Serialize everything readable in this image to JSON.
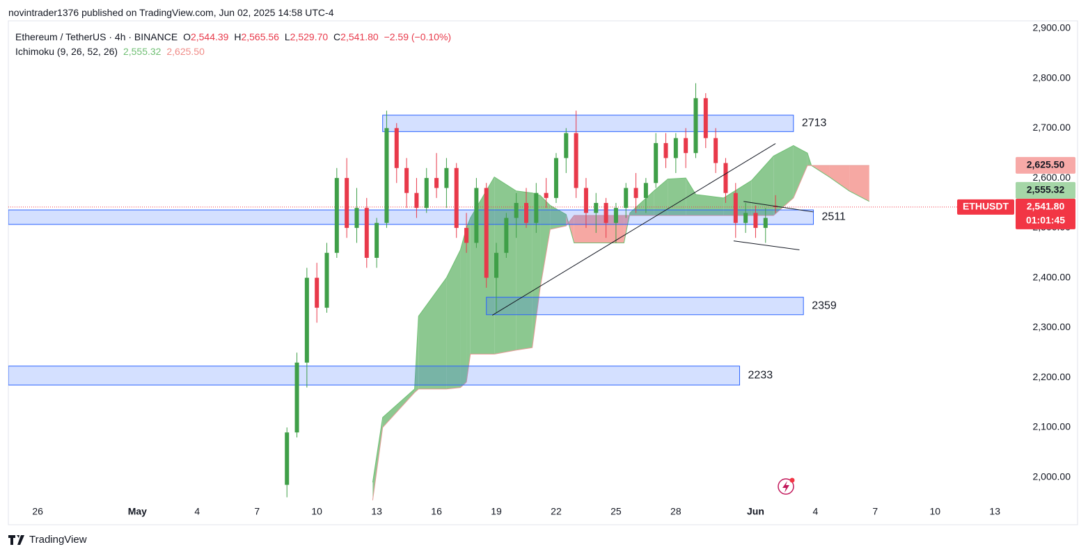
{
  "header": {
    "publisher": "novintrader1376 published on TradingView.com, Jun 02, 2025 14:58 UTC-4",
    "symbol": "Ethereum / TetherUS · 4h · BINANCE",
    "ohlc": [
      {
        "key": "O",
        "value": "2,544.39"
      },
      {
        "key": "H",
        "value": "2,565.56"
      },
      {
        "key": "L",
        "value": "2,529.70"
      },
      {
        "key": "C",
        "value": "2,541.80"
      }
    ],
    "change": "−2.59 (−0.10%)",
    "indicator": "Ichimoku (9, 26, 52, 26)",
    "indicator_values": [
      "2,555.32",
      "2,625.50"
    ]
  },
  "chart_data": {
    "type": "candlestick",
    "x": [
      12.5,
      13,
      13.5,
      14,
      14.5,
      15,
      15.5,
      16,
      16.5,
      17,
      17.5,
      18,
      18.5,
      19,
      19.5,
      20,
      20.5,
      21,
      21.5,
      22,
      22.5,
      23,
      23.5,
      24,
      24.5,
      25,
      25.5,
      26,
      26.5,
      27,
      27.5,
      28,
      28.5,
      29,
      29.5,
      30,
      30.5,
      31,
      31.5,
      32,
      32.5,
      33,
      33.5,
      34,
      34.5,
      35,
      35.5,
      36,
      36.5,
      37
    ],
    "open": [
      1985,
      2090,
      2230,
      2400,
      2340,
      2450,
      2600,
      2500,
      2540,
      2440,
      2510,
      2700,
      2620,
      2570,
      2540,
      2600,
      2580,
      2620,
      2500,
      2470,
      2580,
      2400,
      2450,
      2520,
      2550,
      2510,
      2570,
      2560,
      2640,
      2690,
      2580,
      2530,
      2550,
      2510,
      2540,
      2580,
      2560,
      2590,
      2670,
      2640,
      2680,
      2650,
      2760,
      2680,
      2630,
      2570,
      2510,
      2530,
      2500,
      2544.39
    ],
    "high": [
      2100,
      2250,
      2420,
      2430,
      2470,
      2620,
      2640,
      2580,
      2560,
      2520,
      2735,
      2710,
      2640,
      2600,
      2620,
      2650,
      2640,
      2630,
      2530,
      2600,
      2590,
      2470,
      2530,
      2570,
      2580,
      2590,
      2600,
      2650,
      2700,
      2735,
      2600,
      2570,
      2560,
      2550,
      2590,
      2610,
      2600,
      2690,
      2690,
      2690,
      2700,
      2790,
      2770,
      2700,
      2640,
      2590,
      2550,
      2545,
      2540,
      2565.56
    ],
    "low": [
      1960,
      2080,
      2180,
      2310,
      2330,
      2440,
      2480,
      2470,
      2420,
      2420,
      2500,
      2590,
      2540,
      2520,
      2530,
      2560,
      2540,
      2480,
      2450,
      2460,
      2380,
      2330,
      2440,
      2480,
      2500,
      2490,
      2540,
      2550,
      2610,
      2560,
      2500,
      2490,
      2480,
      2470,
      2520,
      2530,
      2530,
      2580,
      2620,
      2610,
      2620,
      2640,
      2660,
      2610,
      2550,
      2480,
      2490,
      2480,
      2470,
      2529.7
    ],
    "close": [
      2090,
      2230,
      2400,
      2340,
      2450,
      2600,
      2500,
      2540,
      2440,
      2510,
      2700,
      2620,
      2570,
      2540,
      2600,
      2580,
      2620,
      2500,
      2470,
      2580,
      2400,
      2450,
      2520,
      2550,
      2510,
      2570,
      2560,
      2640,
      2690,
      2580,
      2530,
      2550,
      2510,
      2540,
      2580,
      2560,
      2590,
      2670,
      2640,
      2680,
      2650,
      2760,
      2680,
      2630,
      2570,
      2510,
      2530,
      2500,
      2520,
      2541.8
    ],
    "up_color": "#3f9f48",
    "down_color": "#e8394a",
    "xlim": [
      -1.47,
      48.9
    ],
    "xticks": [
      {
        "value": 0,
        "label": "26"
      },
      {
        "value": 5,
        "label": "May"
      },
      {
        "value": 8,
        "label": "4"
      },
      {
        "value": 11,
        "label": "7"
      },
      {
        "value": 14,
        "label": "10"
      },
      {
        "value": 17,
        "label": "13"
      },
      {
        "value": 20,
        "label": "16"
      },
      {
        "value": 23,
        "label": "19"
      },
      {
        "value": 26,
        "label": "22"
      },
      {
        "value": 29,
        "label": "25"
      },
      {
        "value": 32,
        "label": "28"
      },
      {
        "value": 36,
        "label": "Jun"
      },
      {
        "value": 39,
        "label": "4"
      },
      {
        "value": 42,
        "label": "7"
      },
      {
        "value": 45,
        "label": "10"
      },
      {
        "value": 48,
        "label": "13"
      }
    ],
    "ylim": [
      1951,
      2915
    ],
    "yticks": [
      {
        "value": 2000,
        "label": "2,000.00"
      },
      {
        "value": 2100,
        "label": "2,100.00"
      },
      {
        "value": 2200,
        "label": "2,200.00"
      },
      {
        "value": 2300,
        "label": "2,300.00"
      },
      {
        "value": 2400,
        "label": "2,400.00"
      },
      {
        "value": 2500,
        "label": "2,500.00"
      },
      {
        "value": 2600,
        "label": "2,600.00"
      },
      {
        "value": 2700,
        "label": "2,700.00"
      },
      {
        "value": 2800,
        "label": "2,800.00"
      },
      {
        "value": 2900,
        "label": "2,900.00"
      }
    ],
    "cloud": {
      "x": [
        16.8,
        17.3,
        18.9,
        19.1,
        20.5,
        21.2,
        21.5,
        21.7,
        22.9,
        24.0,
        24.8,
        25.2,
        25.7,
        26.5,
        26.9,
        29.4,
        29.7,
        30.9,
        31.6,
        32.5,
        33.0,
        34.4,
        35.8,
        36.9,
        37.9,
        38.6,
        38.8,
        39.7,
        40.7,
        41.7
      ],
      "span_a": [
        1990,
        2120,
        2177,
        2323,
        2400,
        2456,
        2500,
        2520,
        2602,
        2574,
        2570,
        2565,
        2545,
        2527,
        2470,
        2470,
        2530,
        2574,
        2598,
        2600,
        2567,
        2560,
        2595,
        2644,
        2665,
        2650,
        2625,
        2602,
        2574,
        2553
      ],
      "span_b": [
        1954,
        2100,
        2170,
        2177,
        2177,
        2180,
        2191,
        2247,
        2247,
        2255,
        2260,
        2380,
        2497,
        2504,
        2525,
        2525,
        2525,
        2525,
        2525,
        2525,
        2525,
        2525,
        2525,
        2525,
        2560,
        2625,
        2625,
        2625,
        2625,
        2625
      ],
      "up_color": "#8cc890",
      "down_color": "#f6a8a3"
    },
    "zone_color": "#2962ff",
    "zones": [
      {
        "label": "2713",
        "x": [
          17.3,
          37.9
        ],
        "y": [
          2693,
          2726
        ]
      },
      {
        "label": "2511",
        "x": [
          -1.47,
          38.9
        ],
        "y": [
          2507,
          2536
        ]
      },
      {
        "label": "2359",
        "x": [
          22.5,
          38.4
        ],
        "y": [
          2326,
          2361
        ]
      },
      {
        "label": "2233",
        "x": [
          -1.47,
          35.2
        ],
        "y": [
          2185,
          2223
        ]
      }
    ],
    "lines": [
      {
        "x": [
          22.8,
          37.0
        ],
        "y": [
          2325,
          2669
        ]
      },
      {
        "x": [
          35.4,
          38.9
        ],
        "y": [
          2553,
          2532
        ]
      },
      {
        "x": [
          34.9,
          38.2
        ],
        "y": [
          2474,
          2456
        ]
      }
    ],
    "badges": [
      {
        "value": 2625.5,
        "label": "2,625.50",
        "color": "#f7a9a7"
      },
      {
        "value": 2555.32,
        "label": "2,555.32",
        "color": "#a5d6a7"
      }
    ],
    "last": {
      "symbol": "ETHUSDT",
      "value": 2541.8,
      "label": "2,541.80",
      "countdown": "01:01:45",
      "color": "#f23645"
    }
  },
  "footer": "TradingView"
}
